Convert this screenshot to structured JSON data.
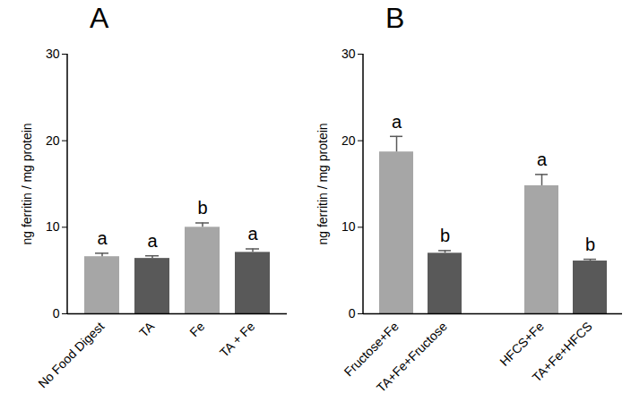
{
  "chart_data": [
    {
      "type": "bar",
      "title": "A",
      "categories": [
        "No Food Digest",
        "TA",
        "Fe",
        "TA + Fe"
      ],
      "values": [
        6.6,
        6.4,
        10.0,
        7.1
      ],
      "errors": [
        0.4,
        0.3,
        0.5,
        0.4
      ],
      "significance_letters": [
        "a",
        "a",
        "b",
        "a"
      ],
      "colors": [
        "#a6a6a6",
        "#595959",
        "#a6a6a6",
        "#595959"
      ],
      "y_label": "ng ferritin / mg protein",
      "ylim": [
        0,
        30
      ],
      "yticks": [
        0,
        10,
        20,
        30
      ]
    },
    {
      "type": "bar",
      "title": "B",
      "categories": [
        "Fructose+Fe",
        "TA+Fe+Fructose",
        null,
        "HFCS+Fe",
        "TA+Fe+HFCS"
      ],
      "values": [
        18.7,
        7.0,
        null,
        14.8,
        6.1
      ],
      "errors": [
        1.8,
        0.3,
        null,
        1.3,
        0.2
      ],
      "significance_letters": [
        "a",
        "b",
        null,
        "a",
        "b"
      ],
      "colors": [
        "#a6a6a6",
        "#595959",
        null,
        "#a6a6a6",
        "#595959"
      ],
      "y_label": "ng ferritin / mg protein",
      "ylim": [
        0,
        30
      ],
      "yticks": [
        0,
        10,
        20,
        30
      ]
    }
  ]
}
